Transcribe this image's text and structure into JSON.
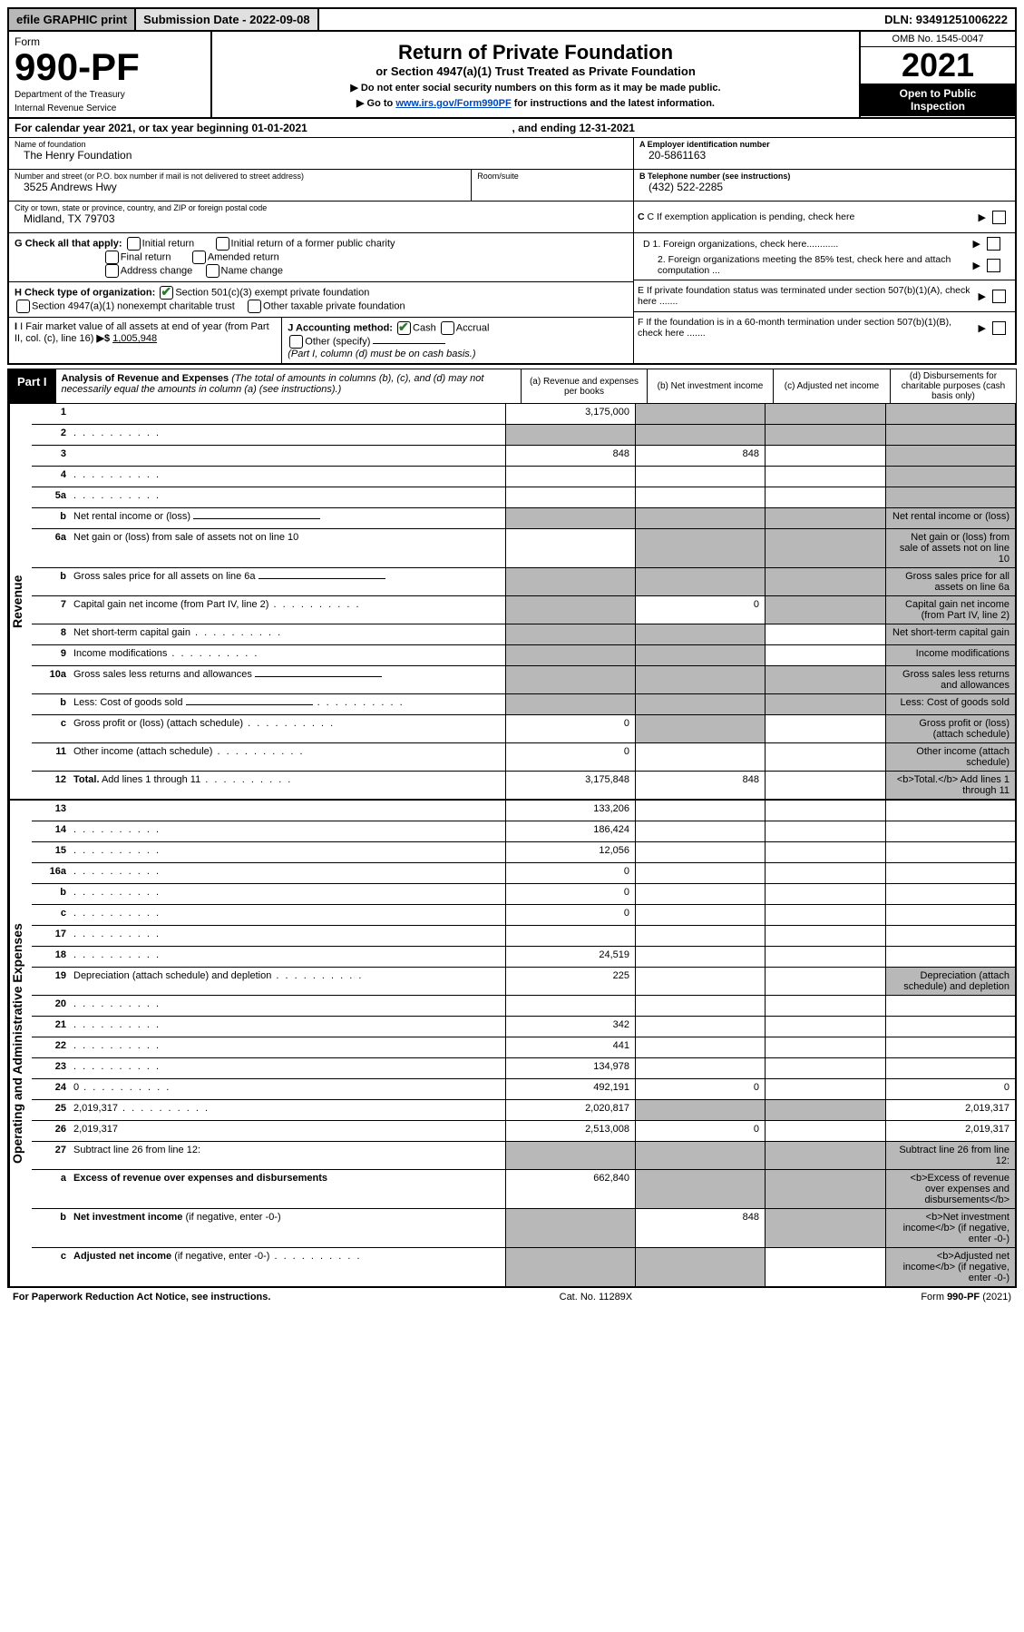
{
  "topbar": {
    "efile": "efile GRAPHIC print",
    "submission_label": "Submission Date - 2022-09-08",
    "dln_label": "DLN: 93491251006222"
  },
  "header": {
    "form_label": "Form",
    "form_number": "990-PF",
    "dept1": "Department of the Treasury",
    "dept2": "Internal Revenue Service",
    "title": "Return of Private Foundation",
    "subtitle": "or Section 4947(a)(1) Trust Treated as Private Foundation",
    "note1": "▶ Do not enter social security numbers on this form as it may be made public.",
    "note2_pre": "▶ Go to ",
    "note2_link": "www.irs.gov/Form990PF",
    "note2_post": " for instructions and the latest information.",
    "omb": "OMB No. 1545-0047",
    "year": "2021",
    "open1": "Open to Public",
    "open2": "Inspection"
  },
  "calendar": {
    "prefix": "For calendar year 2021, or tax year beginning 01-01-2021",
    "mid": ", and ending 12-31-2021"
  },
  "info": {
    "name_label": "Name of foundation",
    "name": "The Henry Foundation",
    "addr_label": "Number and street (or P.O. box number if mail is not delivered to street address)",
    "addr": "3525 Andrews Hwy",
    "room_label": "Room/suite",
    "city_label": "City or town, state or province, country, and ZIP or foreign postal code",
    "city": "Midland, TX  79703",
    "a_label": "A Employer identification number",
    "a_val": "20-5861163",
    "b_label": "B Telephone number (see instructions)",
    "b_val": "(432) 522-2285",
    "c_label": "C If exemption application is pending, check here",
    "d1_label": "D 1. Foreign organizations, check here............",
    "d2_label": "2. Foreign organizations meeting the 85% test, check here and attach computation ...",
    "e_label": "E  If private foundation status was terminated under section 507(b)(1)(A), check here .......",
    "f_label": "F  If the foundation is in a 60-month termination under section 507(b)(1)(B), check here ......."
  },
  "g": {
    "label": "G Check all that apply:",
    "o1": "Initial return",
    "o2": "Final return",
    "o3": "Address change",
    "o4": "Initial return of a former public charity",
    "o5": "Amended return",
    "o6": "Name change"
  },
  "h": {
    "label": "H Check type of organization:",
    "o1": "Section 501(c)(3) exempt private foundation",
    "o2": "Section 4947(a)(1) nonexempt charitable trust",
    "o3": "Other taxable private foundation"
  },
  "i": {
    "label": "I Fair market value of all assets at end of year (from Part II, col. (c), line 16)",
    "arrow": "▶$",
    "val": "1,005,948"
  },
  "j": {
    "label": "J Accounting method:",
    "cash": "Cash",
    "accrual": "Accrual",
    "other": "Other (specify)",
    "note": "(Part I, column (d) must be on cash basis.)"
  },
  "part1": {
    "tag": "Part I",
    "title": "Analysis of Revenue and Expenses",
    "sub": "(The total of amounts in columns (b), (c), and (d) may not necessarily equal the amounts in column (a) (see instructions).)",
    "col_a": "(a)  Revenue and expenses per books",
    "col_b": "(b)  Net investment income",
    "col_c": "(c)  Adjusted net income",
    "col_d": "(d)  Disbursements for charitable purposes (cash basis only)"
  },
  "side": {
    "revenue": "Revenue",
    "expenses": "Operating and Administrative Expenses"
  },
  "rows": [
    {
      "n": "1",
      "d": "",
      "a": "3,175,000",
      "b": "",
      "c": "",
      "shade_bcd": true
    },
    {
      "n": "2",
      "d": "",
      "dots": true,
      "a": "",
      "b": "",
      "c": "",
      "shade_all": true,
      "checkmark": true
    },
    {
      "n": "3",
      "d": "",
      "a": "848",
      "b": "848",
      "c": "",
      "shade_d": true
    },
    {
      "n": "4",
      "d": "",
      "dots": true,
      "a": "",
      "b": "",
      "c": "",
      "shade_d": true
    },
    {
      "n": "5a",
      "d": "",
      "dots": true,
      "a": "",
      "b": "",
      "c": "",
      "shade_d": true
    },
    {
      "n": "b",
      "d": "Net rental income or (loss)",
      "half": true,
      "shade_abcd": true
    },
    {
      "n": "6a",
      "d": "Net gain or (loss) from sale of assets not on line 10",
      "a": "",
      "shade_bcd": true
    },
    {
      "n": "b",
      "d": "Gross sales price for all assets on line 6a",
      "half": true,
      "shade_abcd": true
    },
    {
      "n": "7",
      "d": "Capital gain net income (from Part IV, line 2)",
      "dots": true,
      "shade_a": true,
      "b": "0",
      "shade_cd": true
    },
    {
      "n": "8",
      "d": "Net short-term capital gain",
      "dots": true,
      "shade_ab": true,
      "c": "",
      "shade_d": true
    },
    {
      "n": "9",
      "d": "Income modifications",
      "dots": true,
      "shade_ab": true,
      "c": "",
      "shade_d": true
    },
    {
      "n": "10a",
      "d": "Gross sales less returns and allowances",
      "half": true,
      "shade_abcd": true
    },
    {
      "n": "b",
      "d": "Less: Cost of goods sold",
      "dots": true,
      "half": true,
      "shade_abcd": true
    },
    {
      "n": "c",
      "d": "Gross profit or (loss) (attach schedule)",
      "dots": true,
      "a": "0",
      "shade_b": true,
      "c": "",
      "shade_d": true
    },
    {
      "n": "11",
      "d": "Other income (attach schedule)",
      "dots": true,
      "a": "0",
      "b": "",
      "c": "",
      "shade_d": true
    },
    {
      "n": "12",
      "d": "<b>Total.</b> Add lines 1 through 11",
      "dots": true,
      "a": "3,175,848",
      "b": "848",
      "c": "",
      "shade_d": true,
      "bold": true
    }
  ],
  "exp_rows": [
    {
      "n": "13",
      "d": "",
      "a": "133,206",
      "b": "",
      "c": ""
    },
    {
      "n": "14",
      "d": "",
      "dots": true,
      "a": "186,424",
      "b": "",
      "c": ""
    },
    {
      "n": "15",
      "d": "",
      "dots": true,
      "a": "12,056",
      "b": "",
      "c": ""
    },
    {
      "n": "16a",
      "d": "",
      "dots": true,
      "a": "0",
      "b": "",
      "c": ""
    },
    {
      "n": "b",
      "d": "",
      "dots": true,
      "a": "0",
      "b": "",
      "c": ""
    },
    {
      "n": "c",
      "d": "",
      "dots": true,
      "a": "0",
      "b": "",
      "c": ""
    },
    {
      "n": "17",
      "d": "",
      "dots": true,
      "a": "",
      "b": "",
      "c": ""
    },
    {
      "n": "18",
      "d": "",
      "dots": true,
      "a": "24,519",
      "b": "",
      "c": ""
    },
    {
      "n": "19",
      "d": "Depreciation (attach schedule) and depletion",
      "dots": true,
      "a": "225",
      "b": "",
      "c": "",
      "shade_d": true
    },
    {
      "n": "20",
      "d": "",
      "dots": true,
      "a": "",
      "b": "",
      "c": ""
    },
    {
      "n": "21",
      "d": "",
      "dots": true,
      "a": "342",
      "b": "",
      "c": ""
    },
    {
      "n": "22",
      "d": "",
      "dots": true,
      "a": "441",
      "b": "",
      "c": ""
    },
    {
      "n": "23",
      "d": "",
      "dots": true,
      "a": "134,978",
      "b": "",
      "c": ""
    },
    {
      "n": "24",
      "d": "0",
      "dots": true,
      "a": "492,191",
      "b": "0",
      "c": ""
    },
    {
      "n": "25",
      "d": "2,019,317",
      "dots": true,
      "a": "2,020,817",
      "shade_bc": true
    },
    {
      "n": "26",
      "d": "2,019,317",
      "a": "2,513,008",
      "b": "0",
      "c": ""
    },
    {
      "n": "27",
      "d": "Subtract line 26 from line 12:",
      "shade_abcd": true
    },
    {
      "n": "a",
      "d": "<b>Excess of revenue over expenses and disbursements</b>",
      "a": "662,840",
      "shade_bcd": true
    },
    {
      "n": "b",
      "d": "<b>Net investment income</b> (if negative, enter -0-)",
      "shade_a": true,
      "b": "848",
      "shade_cd": true
    },
    {
      "n": "c",
      "d": "<b>Adjusted net income</b> (if negative, enter -0-)",
      "dots": true,
      "shade_ab": true,
      "c": "",
      "shade_d": true
    }
  ],
  "footer": {
    "left": "For Paperwork Reduction Act Notice, see instructions.",
    "mid": "Cat. No. 11289X",
    "right": "Form 990-PF (2021)"
  }
}
